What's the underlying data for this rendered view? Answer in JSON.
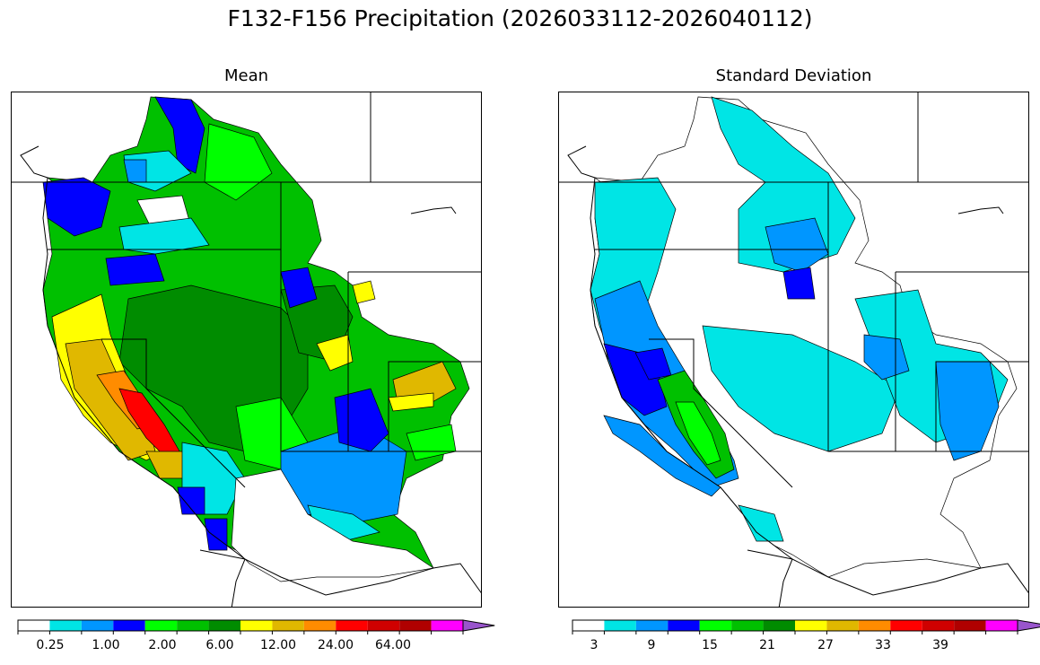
{
  "title": "F132-F156 Precipitation (2026033112-2026040112)",
  "panels": [
    {
      "id": "mean",
      "title": "Mean",
      "colorbar": {
        "colors": [
          "#ffffff",
          "#00e5e5",
          "#0096ff",
          "#0000ff",
          "#00ff00",
          "#00c000",
          "#008c00",
          "#ffff00",
          "#e0b800",
          "#ff8c00",
          "#ff0000",
          "#d00000",
          "#b00000",
          "#ff00ff",
          "#9955cc"
        ],
        "extend": "max",
        "tick_labels": [
          "0.25",
          "1.00",
          "2.00",
          "6.00",
          "12.00",
          "24.00",
          "64.00"
        ]
      }
    },
    {
      "id": "stddev",
      "title": "Standard Deviation",
      "colorbar": {
        "colors": [
          "#ffffff",
          "#00e5e5",
          "#0096ff",
          "#0000ff",
          "#00ff00",
          "#00c000",
          "#008c00",
          "#ffff00",
          "#e0b800",
          "#ff8c00",
          "#ff0000",
          "#d00000",
          "#b00000",
          "#ff00ff",
          "#9955cc"
        ],
        "extend": "max",
        "tick_labels": [
          "3",
          "9",
          "15",
          "21",
          "27",
          "33",
          "39"
        ]
      }
    }
  ]
}
